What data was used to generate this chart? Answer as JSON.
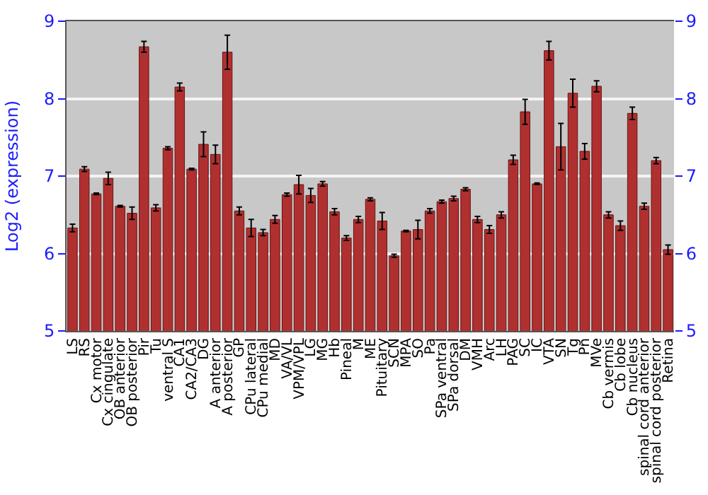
{
  "chart_data": {
    "type": "bar",
    "ylabel": "Log2 (expression)",
    "categories": [
      "LS",
      "RS",
      "Cx motor",
      "Cx cingulate",
      "OB anterior",
      "OB posterior",
      "Pir",
      "Tu",
      "ventral S",
      "CA1",
      "CA2/CA3",
      "DG",
      "A anterior",
      "A posterior",
      "GP",
      "CPu lateral",
      "CPu medial",
      "MD",
      "VA/VL",
      "VPM/VPL",
      "LG",
      "MG",
      "Hb",
      "Pineal",
      "M",
      "ME",
      "Pituitary",
      "SCN",
      "MPA",
      "SO",
      "Pa",
      "SPa ventral",
      "SPa dorsal",
      "DM",
      "VMH",
      "Arc",
      "LH",
      "PAG",
      "SC",
      "IC",
      "VTA",
      "SN",
      "Tg",
      "Pn",
      "MVe",
      "Cb vermis",
      "Cb lobe",
      "Cb nucleus",
      "spinal cord anterior",
      "spinal cord posterior",
      "Retina"
    ],
    "values": [
      6.33,
      7.09,
      6.77,
      6.97,
      6.61,
      6.52,
      8.67,
      6.59,
      7.36,
      8.15,
      7.09,
      7.41,
      7.28,
      8.6,
      6.55,
      6.33,
      6.27,
      6.44,
      6.76,
      6.89,
      6.75,
      6.9,
      6.54,
      6.2,
      6.44,
      6.7,
      6.42,
      5.97,
      6.29,
      6.31,
      6.55,
      6.67,
      6.71,
      6.83,
      6.44,
      6.31,
      6.5,
      7.21,
      7.83,
      6.9,
      8.62,
      7.38,
      8.07,
      7.32,
      8.16,
      6.5,
      6.36,
      7.81,
      6.61,
      7.2,
      6.05
    ],
    "errors": [
      0.05,
      0.03,
      0.01,
      0.08,
      0.01,
      0.08,
      0.07,
      0.04,
      0.02,
      0.05,
      0.01,
      0.16,
      0.12,
      0.22,
      0.05,
      0.11,
      0.04,
      0.05,
      0.02,
      0.12,
      0.09,
      0.03,
      0.04,
      0.03,
      0.04,
      0.02,
      0.11,
      0.02,
      0.01,
      0.12,
      0.03,
      0.02,
      0.03,
      0.02,
      0.04,
      0.05,
      0.04,
      0.06,
      0.16,
      0.01,
      0.12,
      0.3,
      0.18,
      0.1,
      0.07,
      0.04,
      0.06,
      0.08,
      0.04,
      0.04,
      0.06
    ],
    "color": "#b03030",
    "ylim": [
      5,
      9
    ],
    "yticks": [
      5,
      6,
      7,
      8,
      9
    ],
    "y2lim": [
      5,
      9
    ],
    "y2ticks": [
      5,
      6,
      7,
      8,
      9
    ],
    "grid": "y",
    "legend": false
  }
}
